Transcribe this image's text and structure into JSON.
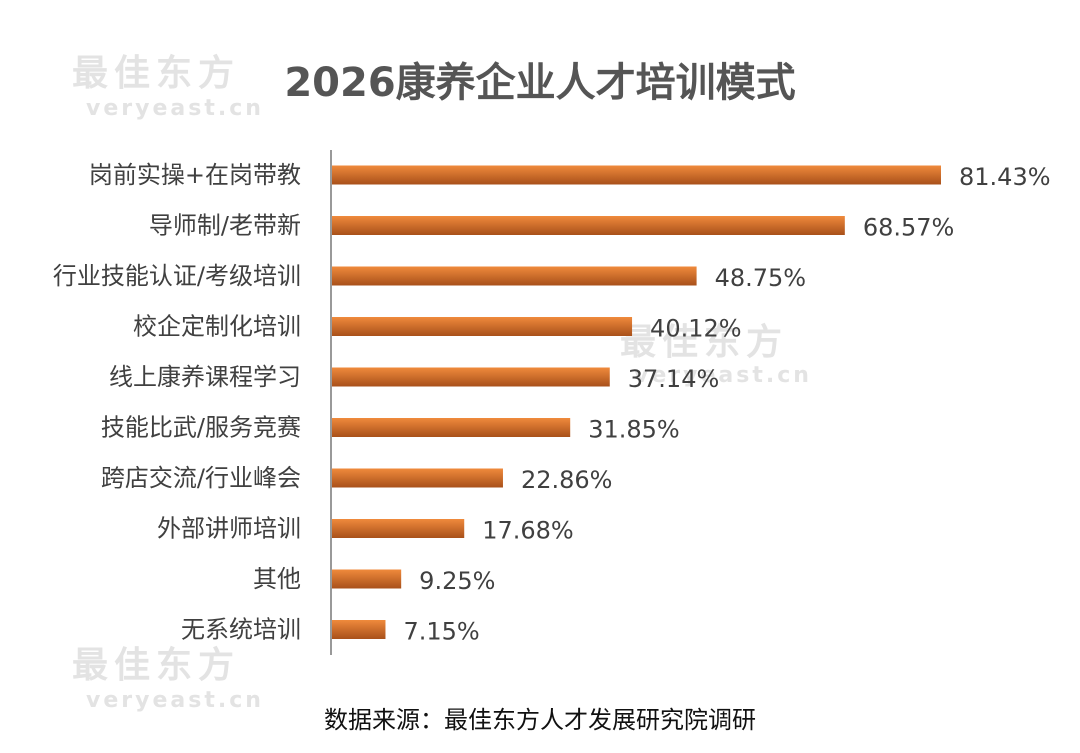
{
  "watermark": {
    "cn": "最佳东方",
    "en": "veryeast.cn"
  },
  "chart_data": {
    "type": "bar",
    "orientation": "horizontal",
    "title": "2026康养企业人才培训模式",
    "source": "数据来源：最佳东方人才发展研究院调研",
    "categories": [
      "岗前实操+在岗带教",
      "导师制/老带新",
      "行业技能认证/考级培训",
      "校企定制化培训",
      "线上康养课程学习",
      "技能比武/服务竞赛",
      "跨店交流/行业峰会",
      "外部讲师培训",
      "其他",
      "无系统培训"
    ],
    "values": [
      81.43,
      68.57,
      48.75,
      40.12,
      37.14,
      31.85,
      22.86,
      17.68,
      9.25,
      7.15
    ],
    "value_labels": [
      "81.43%",
      "68.57%",
      "48.75%",
      "40.12%",
      "37.14%",
      "31.85%",
      "22.86%",
      "17.68%",
      "9.25%",
      "7.15%"
    ],
    "unit": "%",
    "xlim": [
      0,
      81.43
    ],
    "grid": false,
    "legend": "none",
    "colors": {
      "bar_start": "#A8501A",
      "bar_end": "#F08A3C",
      "axis": "#999999"
    }
  }
}
